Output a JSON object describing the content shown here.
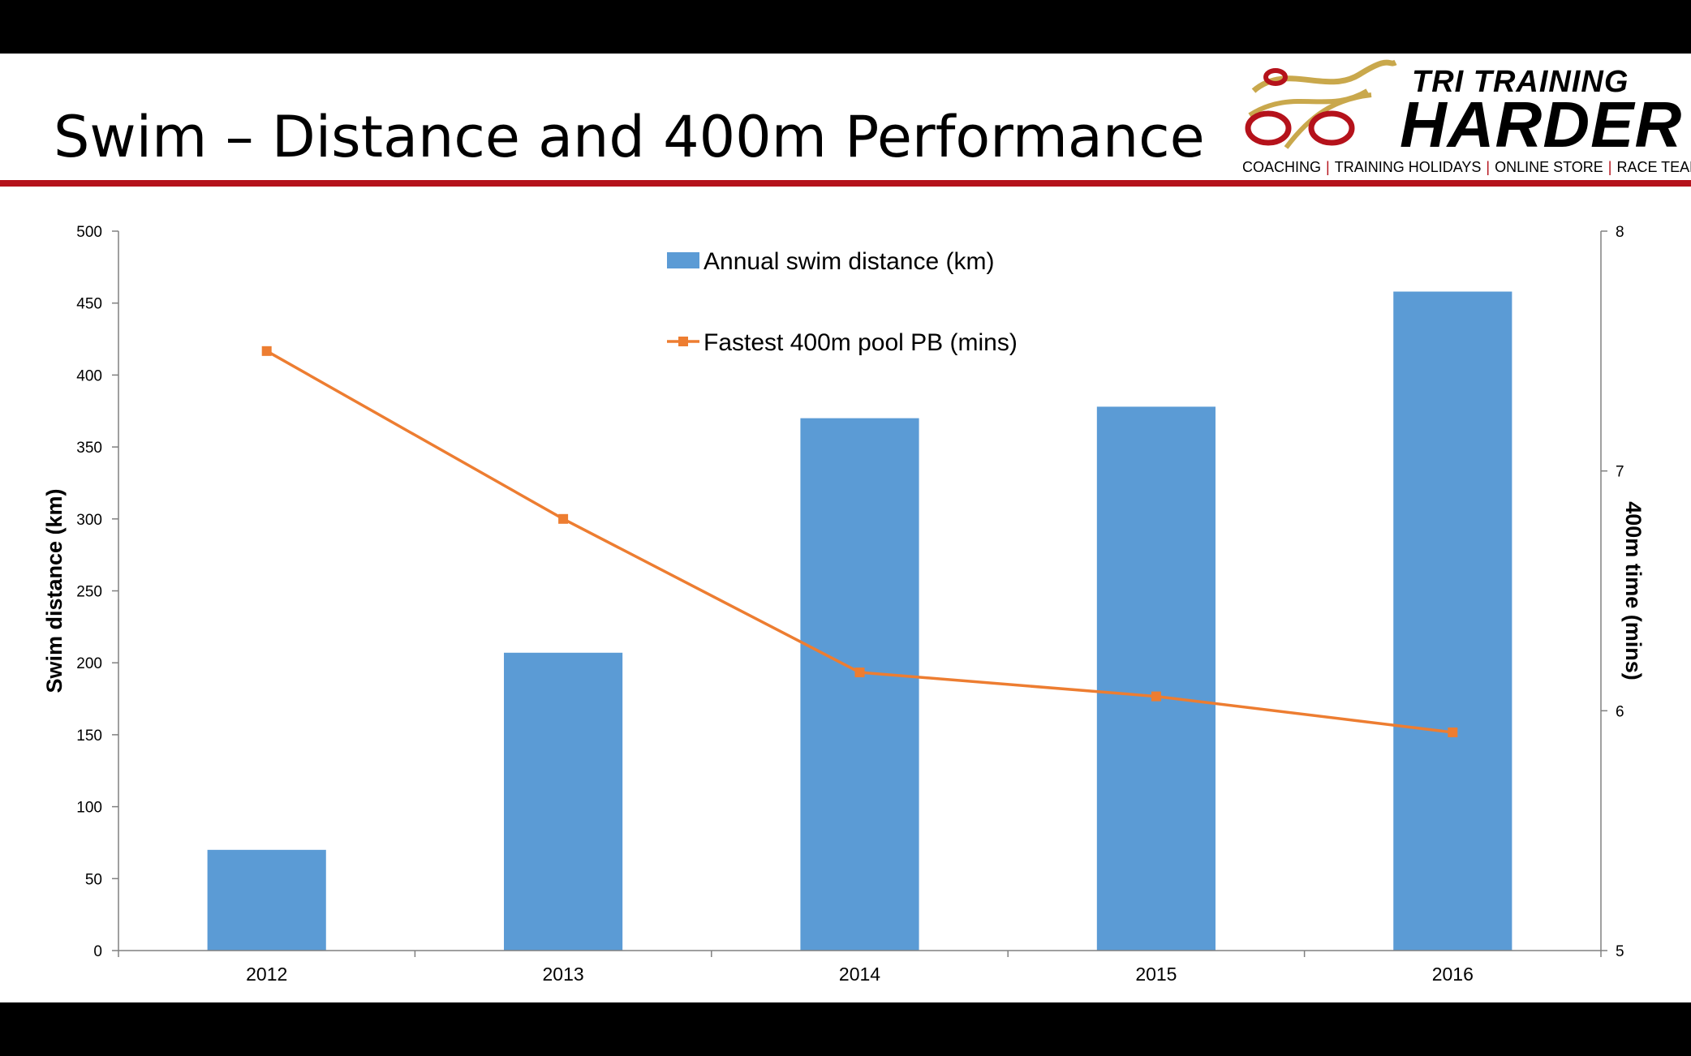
{
  "slide": {
    "title": "Swim – Distance and 400m Performance"
  },
  "logo": {
    "line1": "TRI TRAINING",
    "line2": "HARDER",
    "tagline": [
      "COACHING",
      "TRAINING HOLIDAYS",
      "ONLINE STORE",
      "RACE TEAM"
    ],
    "colors": {
      "red": "#b5121b",
      "gold": "#c9a84c"
    }
  },
  "chart_data": {
    "type": "bar",
    "categories": [
      "2012",
      "2013",
      "2014",
      "2015",
      "2016"
    ],
    "series": [
      {
        "name": "Annual swim distance (km)",
        "type": "bar",
        "axis": "left",
        "color": "#5b9bd5",
        "values": [
          70,
          207,
          370,
          378,
          458
        ]
      },
      {
        "name": "Fastest 400m pool PB (mins)",
        "type": "line",
        "axis": "right",
        "color": "#ed7d31",
        "marker": "square",
        "values": [
          7.5,
          6.8,
          6.16,
          6.06,
          5.91
        ]
      }
    ],
    "ylabel": "Swim distance (km)",
    "y2label": "400m time (mins)",
    "ylim": [
      0,
      500
    ],
    "yticks": [
      "0",
      "50",
      "100",
      "150",
      "200",
      "250",
      "300",
      "350",
      "400",
      "450",
      "500"
    ],
    "y2lim": [
      5,
      8
    ],
    "y2ticks": [
      "5",
      "6",
      "7",
      "8"
    ],
    "legend_position": "top-center",
    "grid": false
  }
}
